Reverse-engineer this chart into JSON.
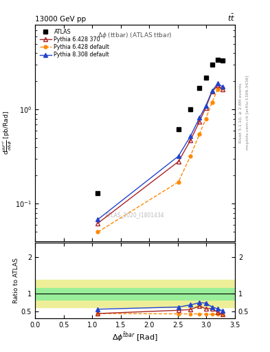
{
  "title_top_left": "13000 GeV pp",
  "title_top_right": "tt",
  "plot_title": "Δφ (ttbar) (ATLAS ttbar)",
  "watermark": "ATLAS_2020_I1801434",
  "right_label1": "Rivet 3.1.10, ≥ 2.8M events",
  "right_label2": "mcplots.cern.ch [arXiv:1306.3436]",
  "xlabel": "Δφ⁻ᵗᵇᵃʳ⁼ [Rad]",
  "ylabel": "dσⁿᵈ/d(Δφ⁻ᵗᵇᵃʳ⁼) [pb/Rad]",
  "ylabel_ratio": "Ratio to ATLAS",
  "atlas_x": [
    1.1,
    2.51,
    2.72,
    2.88,
    2.99,
    3.1,
    3.2,
    3.28
  ],
  "atlas_y": [
    0.13,
    0.62,
    1.0,
    1.7,
    2.2,
    3.0,
    3.4,
    3.3
  ],
  "py6_370_x": [
    1.1,
    2.51,
    2.72,
    2.88,
    2.99,
    3.1,
    3.2,
    3.28
  ],
  "py6_370_y": [
    0.062,
    0.28,
    0.47,
    0.75,
    1.05,
    1.55,
    1.8,
    1.65
  ],
  "py6_def_x": [
    1.1,
    2.51,
    2.72,
    2.88,
    2.99,
    3.1,
    3.2,
    3.28
  ],
  "py6_def_y": [
    0.05,
    0.17,
    0.32,
    0.55,
    0.8,
    1.2,
    1.65,
    1.7
  ],
  "py8_def_x": [
    1.1,
    2.51,
    2.72,
    2.88,
    2.99,
    3.1,
    3.2,
    3.28
  ],
  "py8_def_y": [
    0.068,
    0.32,
    0.52,
    0.82,
    1.1,
    1.58,
    1.9,
    1.75
  ],
  "ratio_py6_370_x": [
    1.1,
    2.51,
    2.72,
    2.88,
    2.99,
    3.1,
    3.2,
    3.28
  ],
  "ratio_py6_370_y": [
    0.44,
    0.53,
    0.55,
    0.65,
    0.57,
    0.58,
    0.47,
    0.42
  ],
  "ratio_py6_def_x": [
    1.1,
    2.51,
    2.72,
    2.88,
    2.99,
    3.1,
    3.2,
    3.28
  ],
  "ratio_py6_def_y": [
    0.44,
    0.43,
    0.43,
    0.43,
    0.42,
    0.42,
    0.42,
    0.42
  ],
  "ratio_py8_def_x": [
    1.1,
    2.51,
    2.72,
    2.88,
    2.99,
    3.1,
    3.2,
    3.28
  ],
  "ratio_py8_def_y": [
    0.56,
    0.62,
    0.68,
    0.74,
    0.73,
    0.62,
    0.57,
    0.52
  ],
  "band_green_lo": 0.82,
  "band_green_hi": 1.15,
  "band_yellow_lo": 0.62,
  "band_yellow_hi": 1.38,
  "xlim": [
    0,
    3.5
  ],
  "ylim_main_lo": 0.04,
  "ylim_main_hi": 8.0,
  "ylim_ratio": [
    0.3,
    2.4
  ],
  "ratio_yticks": [
    0.5,
    1.0,
    2.0
  ],
  "ratio_yticklabels": [
    "0.5",
    "1",
    "2"
  ],
  "color_atlas": "#000000",
  "color_py6_370": "#aa2222",
  "color_py6_def": "#ff8800",
  "color_py8_def": "#2244cc",
  "color_green": "#99ee99",
  "color_yellow": "#eeee99"
}
